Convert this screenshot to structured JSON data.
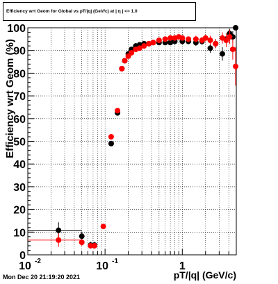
{
  "chart_data": {
    "type": "scatter",
    "title": "Efficiency wrt Geom for Global vs pT/|q| (GeV/c) at |  η  | <= 1.0",
    "xlabel": "pT/|q| (GeV/c)",
    "ylabel": "Efficiency wrt  Geom (%)",
    "xscale": "log",
    "xlim": [
      0.01,
      5.0
    ],
    "ylim": [
      0,
      100
    ],
    "grid": true,
    "x_tick_labels": [
      {
        "x": 0.01,
        "label": "10",
        "sup": "-2"
      },
      {
        "x": 0.1,
        "label": "10",
        "sup": "-1"
      },
      {
        "x": 1,
        "label": "1",
        "sup": ""
      }
    ],
    "y_tick_labels": [
      "0",
      "10",
      "20",
      "30",
      "40",
      "50",
      "60",
      "70",
      "80",
      "90",
      "100"
    ],
    "series": [
      {
        "color": "#000000",
        "points": [
          {
            "x": 0.025,
            "y": 10.8,
            "xerr": [
              0.015,
              0.025
            ],
            "yerr": 3.5
          },
          {
            "x": 0.05,
            "y": 8.2,
            "xerr": [
              0.004,
              0.004
            ],
            "yerr": 2.0
          },
          {
            "x": 0.065,
            "y": 4.3,
            "xerr": [
              0.004,
              0.004
            ],
            "yerr": 1.5
          },
          {
            "x": 0.073,
            "y": 4.3,
            "xerr": [
              0.004,
              0.004
            ],
            "yerr": 1.5
          },
          {
            "x": 0.12,
            "y": 49.0,
            "xerr": [
              0,
              0
            ],
            "yerr": 1.0
          },
          {
            "x": 0.145,
            "y": 62.5,
            "xerr": [
              0,
              0
            ],
            "yerr": 1.0
          },
          {
            "x": 0.165,
            "y": 82.0,
            "xerr": [
              0,
              0
            ],
            "yerr": 1.0
          },
          {
            "x": 0.18,
            "y": 85.5,
            "xerr": [
              0,
              0
            ],
            "yerr": 1.0
          },
          {
            "x": 0.2,
            "y": 88.5,
            "xerr": [
              0,
              0
            ],
            "yerr": 1.0
          },
          {
            "x": 0.22,
            "y": 90.5,
            "xerr": [
              0,
              0
            ],
            "yerr": 1.0
          },
          {
            "x": 0.25,
            "y": 92.0,
            "xerr": [
              0,
              0
            ],
            "yerr": 1.0
          },
          {
            "x": 0.28,
            "y": 92.5,
            "xerr": [
              0,
              0
            ],
            "yerr": 1.0
          },
          {
            "x": 0.32,
            "y": 93.0,
            "xerr": [
              0,
              0
            ],
            "yerr": 1.0
          },
          {
            "x": 0.37,
            "y": 93.0,
            "xerr": [
              0,
              0
            ],
            "yerr": 1.0
          },
          {
            "x": 0.42,
            "y": 93.5,
            "xerr": [
              0,
              0
            ],
            "yerr": 1.0
          },
          {
            "x": 0.5,
            "y": 93.5,
            "xerr": [
              0,
              0
            ],
            "yerr": 1.0
          },
          {
            "x": 0.6,
            "y": 93.5,
            "xerr": [
              0,
              0
            ],
            "yerr": 1.0
          },
          {
            "x": 0.7,
            "y": 93.5,
            "xerr": [
              0,
              0
            ],
            "yerr": 1.0
          },
          {
            "x": 0.8,
            "y": 94.0,
            "xerr": [
              0,
              0
            ],
            "yerr": 1.0
          },
          {
            "x": 1.0,
            "y": 94.0,
            "xerr": [
              0,
              0
            ],
            "yerr": 1.0
          },
          {
            "x": 1.2,
            "y": 94.0,
            "xerr": [
              0,
              0
            ],
            "yerr": 1.2
          },
          {
            "x": 1.5,
            "y": 93.5,
            "xerr": [
              0,
              0
            ],
            "yerr": 1.5
          },
          {
            "x": 1.8,
            "y": 94.0,
            "xerr": [
              0,
              0
            ],
            "yerr": 1.5
          },
          {
            "x": 2.3,
            "y": 91.0,
            "xerr": [
              0,
              0
            ],
            "yerr": 2.0
          },
          {
            "x": 2.7,
            "y": 93.0,
            "xerr": [
              0,
              0
            ],
            "yerr": 2.0
          },
          {
            "x": 3.3,
            "y": 88.5,
            "xerr": [
              0,
              0
            ],
            "yerr": 3.0
          },
          {
            "x": 3.7,
            "y": 95.0,
            "xerr": [
              0,
              0
            ],
            "yerr": 2.5
          },
          {
            "x": 4.1,
            "y": 97.5,
            "xerr": [
              0,
              0
            ],
            "yerr": 2.0
          },
          {
            "x": 4.5,
            "y": 96.0,
            "xerr": [
              0,
              0
            ],
            "yerr": 2.5
          },
          {
            "x": 4.9,
            "y": 100.0,
            "xerr": [
              0,
              0
            ],
            "yerr": 0.5
          }
        ]
      },
      {
        "color": "#ff0000",
        "points": [
          {
            "x": 0.025,
            "y": 6.5,
            "xerr": [
              0.015,
              0.025
            ],
            "yerr": 3.0
          },
          {
            "x": 0.05,
            "y": 5.5,
            "xerr": [
              0.004,
              0.004
            ],
            "yerr": 1.5
          },
          {
            "x": 0.065,
            "y": 4.0,
            "xerr": [
              0.004,
              0.004
            ],
            "yerr": 1.2
          },
          {
            "x": 0.073,
            "y": 4.0,
            "xerr": [
              0.004,
              0.004
            ],
            "yerr": 1.2
          },
          {
            "x": 0.095,
            "y": 12.5,
            "xerr": [
              0.004,
              0.004
            ],
            "yerr": 1.0
          },
          {
            "x": 0.12,
            "y": 52.0,
            "xerr": [
              0,
              0
            ],
            "yerr": 1.0
          },
          {
            "x": 0.145,
            "y": 63.5,
            "xerr": [
              0,
              0
            ],
            "yerr": 1.0
          },
          {
            "x": 0.165,
            "y": 82.0,
            "xerr": [
              0,
              0
            ],
            "yerr": 1.0
          },
          {
            "x": 0.18,
            "y": 85.5,
            "xerr": [
              0,
              0
            ],
            "yerr": 1.0
          },
          {
            "x": 0.2,
            "y": 87.5,
            "xerr": [
              0,
              0
            ],
            "yerr": 1.0
          },
          {
            "x": 0.22,
            "y": 89.0,
            "xerr": [
              0,
              0
            ],
            "yerr": 1.0
          },
          {
            "x": 0.25,
            "y": 90.5,
            "xerr": [
              0,
              0
            ],
            "yerr": 1.0
          },
          {
            "x": 0.28,
            "y": 91.0,
            "xerr": [
              0,
              0
            ],
            "yerr": 1.0
          },
          {
            "x": 0.32,
            "y": 92.0,
            "xerr": [
              0,
              0
            ],
            "yerr": 1.0
          },
          {
            "x": 0.37,
            "y": 93.0,
            "xerr": [
              0,
              0
            ],
            "yerr": 1.0
          },
          {
            "x": 0.42,
            "y": 93.5,
            "xerr": [
              0,
              0
            ],
            "yerr": 1.0
          },
          {
            "x": 0.5,
            "y": 94.5,
            "xerr": [
              0,
              0
            ],
            "yerr": 1.0
          },
          {
            "x": 0.6,
            "y": 95.0,
            "xerr": [
              0,
              0
            ],
            "yerr": 1.0
          },
          {
            "x": 0.7,
            "y": 95.5,
            "xerr": [
              0,
              0
            ],
            "yerr": 1.0
          },
          {
            "x": 0.8,
            "y": 95.5,
            "xerr": [
              0,
              0
            ],
            "yerr": 1.0
          },
          {
            "x": 0.9,
            "y": 96.0,
            "xerr": [
              0,
              0
            ],
            "yerr": 1.0
          },
          {
            "x": 1.0,
            "y": 95.5,
            "xerr": [
              0,
              0
            ],
            "yerr": 1.0
          },
          {
            "x": 1.2,
            "y": 95.0,
            "xerr": [
              0,
              0
            ],
            "yerr": 1.2
          },
          {
            "x": 1.5,
            "y": 95.0,
            "xerr": [
              0,
              0
            ],
            "yerr": 1.5
          },
          {
            "x": 1.8,
            "y": 94.5,
            "xerr": [
              0,
              0
            ],
            "yerr": 1.5
          },
          {
            "x": 2.0,
            "y": 95.5,
            "xerr": [
              0,
              0
            ],
            "yerr": 1.5
          },
          {
            "x": 2.3,
            "y": 94.5,
            "xerr": [
              0,
              0
            ],
            "yerr": 2.0
          },
          {
            "x": 2.7,
            "y": 93.0,
            "xerr": [
              0,
              0
            ],
            "yerr": 2.0
          },
          {
            "x": 3.3,
            "y": 95.5,
            "xerr": [
              0,
              0
            ],
            "yerr": 2.5
          },
          {
            "x": 3.7,
            "y": 94.5,
            "xerr": [
              0,
              0
            ],
            "yerr": 3.0
          },
          {
            "x": 4.1,
            "y": 96.0,
            "xerr": [
              0,
              0
            ],
            "yerr": 3.0
          },
          {
            "x": 4.5,
            "y": 90.5,
            "xerr": [
              0,
              0
            ],
            "yerr": 4.5
          },
          {
            "x": 4.9,
            "y": 83.0,
            "xerr": [
              0,
              0
            ],
            "yerr": 8.5
          }
        ]
      }
    ]
  },
  "footer": {
    "date": "Mon Dec 20 21:19:20 2021"
  }
}
